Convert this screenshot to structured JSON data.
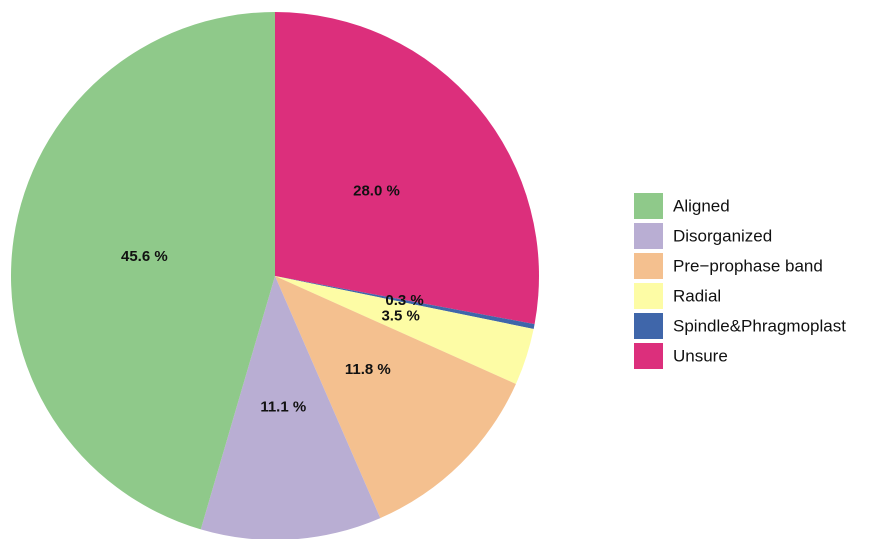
{
  "chart_data": {
    "type": "pie",
    "categories": [
      "Aligned",
      "Disorganized",
      "Pre−prophase band",
      "Radial",
      "Spindle&Phragmoplast",
      "Unsure"
    ],
    "values": [
      45.6,
      11.1,
      11.8,
      3.5,
      0.3,
      28.0
    ],
    "value_labels": [
      "45.6 %",
      "11.1 %",
      "11.8 %",
      "3.5 %",
      "0.3 %",
      "28.0 %"
    ],
    "colors": [
      "#8fc98a",
      "#b9aed3",
      "#f4c08f",
      "#fdfca5",
      "#3f66aa",
      "#dc2f7c"
    ],
    "direction": "counterclockwise-from-legend-end",
    "legend": "right"
  }
}
